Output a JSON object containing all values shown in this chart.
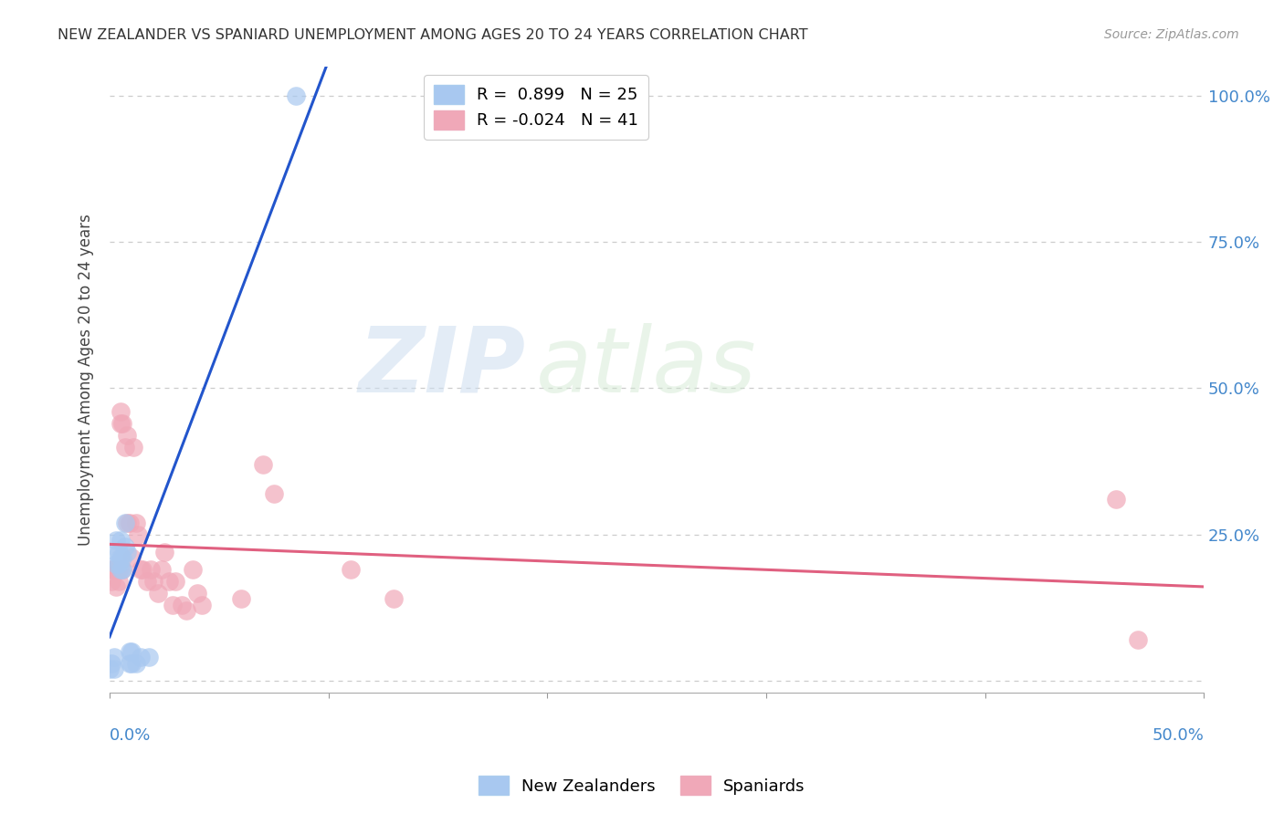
{
  "title": "NEW ZEALANDER VS SPANIARD UNEMPLOYMENT AMONG AGES 20 TO 24 YEARS CORRELATION CHART",
  "source": "Source: ZipAtlas.com",
  "ylabel": "Unemployment Among Ages 20 to 24 years",
  "xlim": [
    0.0,
    0.5
  ],
  "ylim": [
    -0.02,
    1.05
  ],
  "yticks": [
    0.0,
    0.25,
    0.5,
    0.75,
    1.0
  ],
  "ytick_labels": [
    "",
    "25.0%",
    "50.0%",
    "75.0%",
    "100.0%"
  ],
  "xtick_vals": [
    0.0,
    0.1,
    0.2,
    0.3,
    0.4,
    0.5
  ],
  "nz_R": 0.899,
  "nz_N": 25,
  "sp_R": -0.024,
  "sp_N": 41,
  "nz_color": "#a8c8f0",
  "sp_color": "#f0a8b8",
  "nz_line_color": "#2255cc",
  "sp_line_color": "#e06080",
  "background_color": "#ffffff",
  "grid_color": "#cccccc",
  "watermark_zip": "ZIP",
  "watermark_atlas": "atlas",
  "nz_x": [
    0.0,
    0.001,
    0.002,
    0.002,
    0.003,
    0.003,
    0.003,
    0.004,
    0.004,
    0.005,
    0.005,
    0.005,
    0.006,
    0.006,
    0.007,
    0.007,
    0.008,
    0.009,
    0.009,
    0.01,
    0.01,
    0.012,
    0.014,
    0.018,
    0.085
  ],
  "nz_y": [
    0.02,
    0.03,
    0.02,
    0.04,
    0.2,
    0.22,
    0.24,
    0.2,
    0.22,
    0.19,
    0.21,
    0.24,
    0.19,
    0.21,
    0.23,
    0.27,
    0.22,
    0.03,
    0.05,
    0.03,
    0.05,
    0.03,
    0.04,
    0.04,
    1.0
  ],
  "sp_x": [
    0.0,
    0.001,
    0.002,
    0.003,
    0.004,
    0.004,
    0.005,
    0.005,
    0.006,
    0.006,
    0.007,
    0.008,
    0.008,
    0.009,
    0.01,
    0.011,
    0.012,
    0.013,
    0.014,
    0.015,
    0.017,
    0.019,
    0.02,
    0.022,
    0.024,
    0.025,
    0.027,
    0.029,
    0.03,
    0.033,
    0.035,
    0.038,
    0.04,
    0.042,
    0.06,
    0.07,
    0.075,
    0.11,
    0.13,
    0.46,
    0.47
  ],
  "sp_y": [
    0.19,
    0.17,
    0.19,
    0.16,
    0.19,
    0.17,
    0.44,
    0.46,
    0.44,
    0.19,
    0.4,
    0.42,
    0.27,
    0.27,
    0.21,
    0.4,
    0.27,
    0.25,
    0.19,
    0.19,
    0.17,
    0.19,
    0.17,
    0.15,
    0.19,
    0.22,
    0.17,
    0.13,
    0.17,
    0.13,
    0.12,
    0.19,
    0.15,
    0.13,
    0.14,
    0.37,
    0.32,
    0.19,
    0.14,
    0.31,
    0.07
  ],
  "legend_R_nz_text": "R =  0.899   N = 25",
  "legend_R_sp_text": "R = -0.024   N = 41",
  "legend_bot_nz": "New Zealanders",
  "legend_bot_sp": "Spaniards"
}
